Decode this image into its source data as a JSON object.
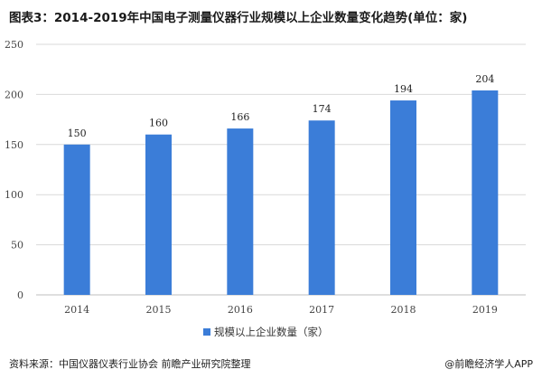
{
  "title": "图表3：2014-2019年中国电子测量仪器行业规模以上企业数量变化趋势(单位：家)",
  "source": "资料来源：中国仪器仪表行业协会 前瞻产业研究院整理",
  "credit": "@前瞻经济学人APP",
  "colors": {
    "bar": "#3b7dd8",
    "grid": "#d9d9d9",
    "axis": "#bfbfbf"
  },
  "chart_data": {
    "type": "bar",
    "title": "图表3：2014-2019年中国电子测量仪器行业规模以上企业数量变化趋势(单位：家)",
    "categories": [
      "2014",
      "2015",
      "2016",
      "2017",
      "2018",
      "2019"
    ],
    "series": [
      {
        "name": "规模以上企业数量（家）",
        "values": [
          150,
          160,
          166,
          174,
          194,
          204
        ]
      }
    ],
    "ylim": [
      0,
      250
    ],
    "yticks": [
      0,
      50,
      100,
      150,
      200,
      250
    ],
    "grid": true,
    "legend": "bottom"
  }
}
